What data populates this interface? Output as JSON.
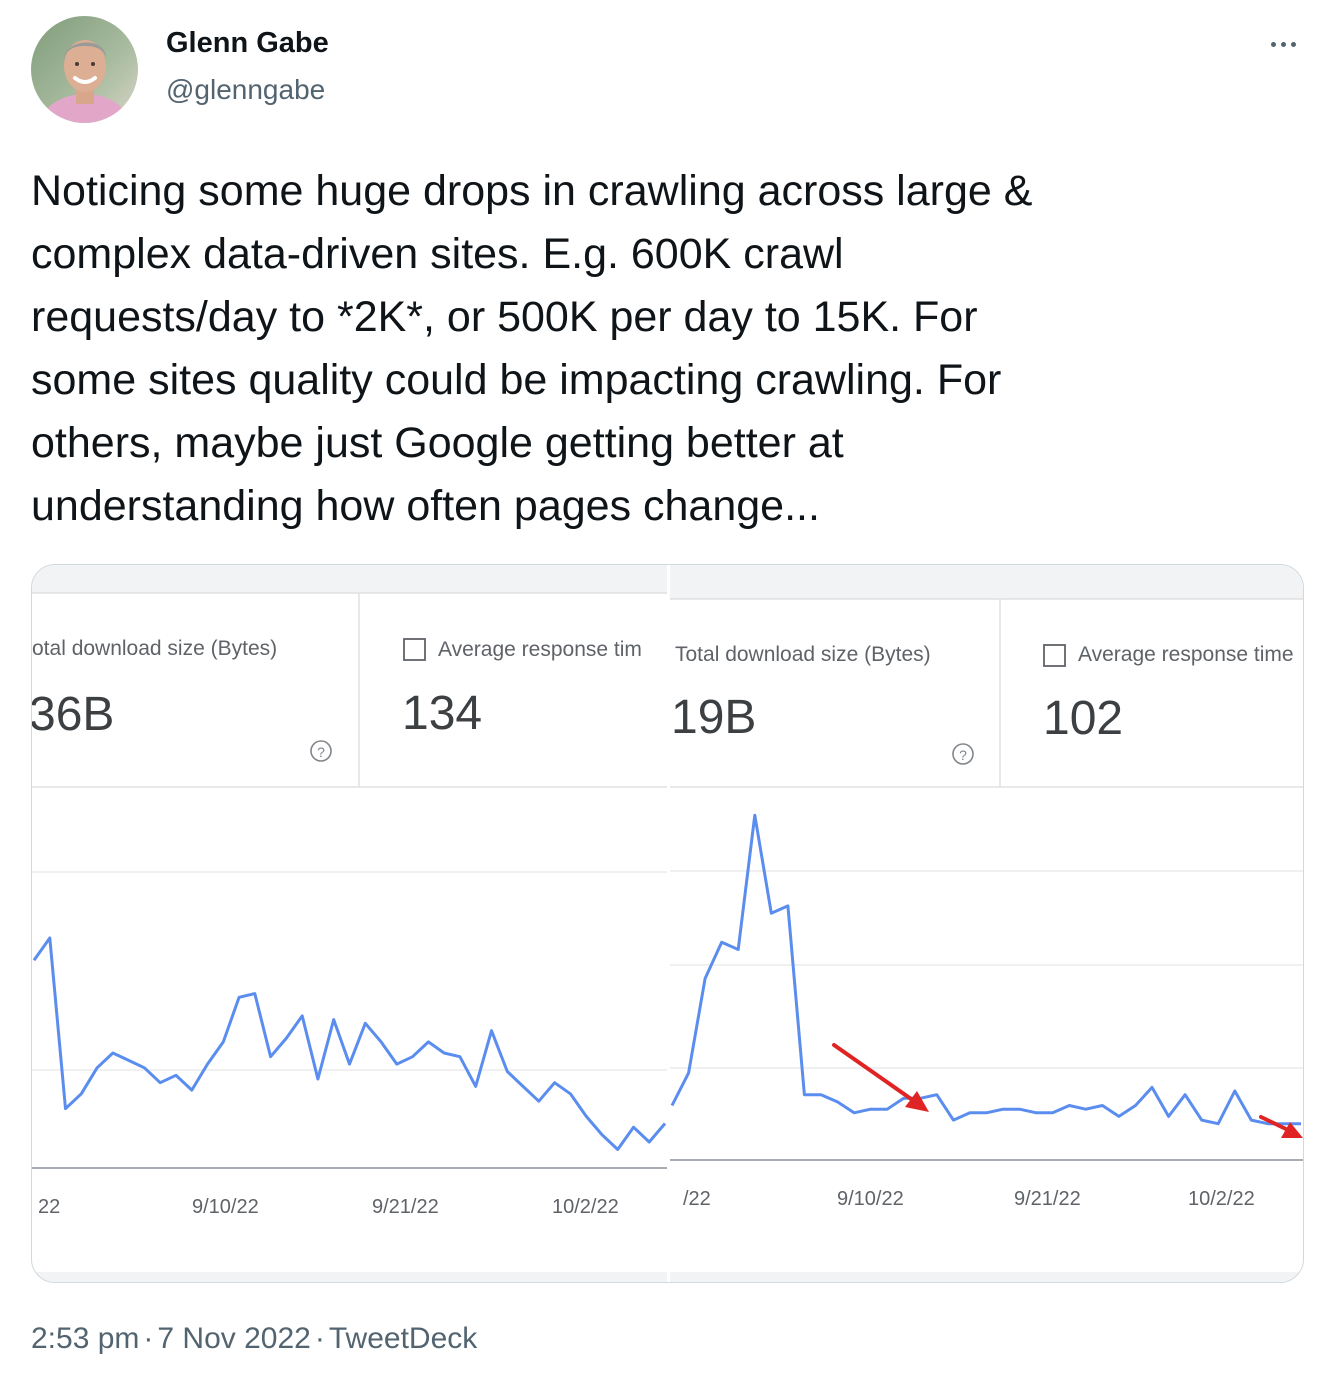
{
  "tweet": {
    "author_name": "Glenn Gabe",
    "author_handle": "@glenngabe",
    "text": "Noticing some huge drops in crawling across large &\ncomplex data-driven sites. E.g. 600K crawl\nrequests/day to *2K*, or 500K per day to 15K. For\nsome sites quality could be impacting crawling. For\nothers, maybe just Google getting better at\nunderstanding how often pages change...",
    "time": "2:53 pm",
    "date": "7 Nov 2022",
    "source": "TweetDeck",
    "separator": "·"
  },
  "media": {
    "left_panel": {
      "metric1_label": "otal download size (Bytes)",
      "metric1_value": "36B",
      "metric2_label": "Average response tim",
      "metric2_value": "134",
      "help_icon": "help-circle-icon",
      "checkbox_checked": false,
      "x_tick_labels": [
        "22",
        "9/10/22",
        "9/21/22",
        "10/2/22"
      ]
    },
    "right_panel": {
      "metric1_label": "Total download size (Bytes)",
      "metric1_value": "19B",
      "metric2_label": "Average response time",
      "metric2_value": "102",
      "help_icon": "help-circle-icon",
      "checkbox_checked": false,
      "x_tick_labels": [
        "/22",
        "9/10/22",
        "9/21/22",
        "10/2/22"
      ]
    },
    "line_color": "#5b8def",
    "arrow_color": "#e02424"
  },
  "chart_data": [
    {
      "type": "line",
      "series": [
        {
          "values": [
            0.56,
            0.62,
            0.16,
            0.2,
            0.27,
            0.31,
            0.29,
            0.27,
            0.23,
            0.25,
            0.21,
            0.28,
            0.34,
            0.46,
            0.47,
            0.3,
            0.35,
            0.41,
            0.24,
            0.4,
            0.28,
            0.39,
            0.34,
            0.28,
            0.3,
            0.34,
            0.31,
            0.3,
            0.22,
            0.37,
            0.26,
            0.22,
            0.18,
            0.23,
            0.2,
            0.14,
            0.09,
            0.05,
            0.11,
            0.07,
            0.12
          ]
        }
      ],
      "grid": true,
      "x_tick_labels": [
        "22",
        "9/10/22",
        "9/21/22",
        "10/2/22"
      ]
    },
    {
      "type": "line",
      "series": [
        {
          "values": [
            0.15,
            0.24,
            0.5,
            0.6,
            0.58,
            0.95,
            0.68,
            0.7,
            0.18,
            0.18,
            0.16,
            0.13,
            0.14,
            0.14,
            0.17,
            0.17,
            0.18,
            0.11,
            0.13,
            0.13,
            0.14,
            0.14,
            0.13,
            0.13,
            0.15,
            0.14,
            0.15,
            0.12,
            0.15,
            0.2,
            0.12,
            0.18,
            0.11,
            0.1,
            0.19,
            0.11,
            0.1,
            0.1,
            0.1
          ]
        }
      ],
      "grid": true,
      "x_tick_labels": [
        "/22",
        "9/10/22",
        "9/21/22",
        "10/2/22"
      ]
    }
  ]
}
